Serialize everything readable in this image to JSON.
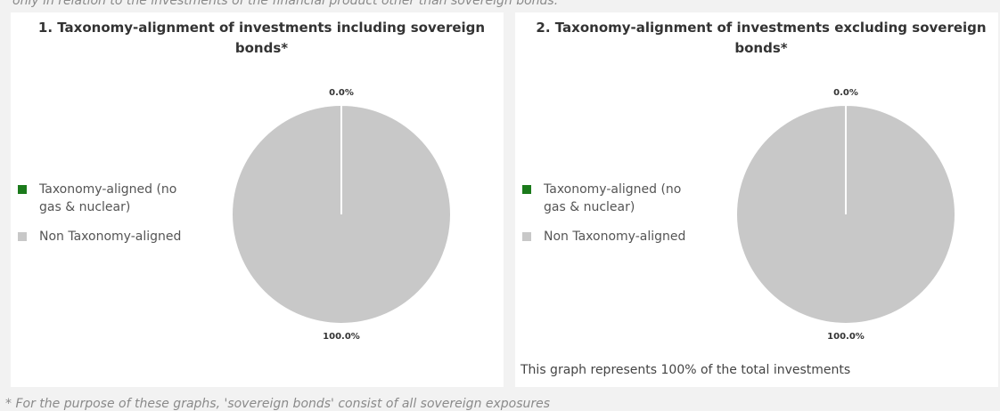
{
  "header_text": "only in relation to the investments of the financial product other than sovereign bonds.",
  "chart_data": [
    {
      "type": "pie",
      "title": "1. Taxonomy-alignment of investments including sovereign bonds*",
      "categories": [
        "Taxonomy-aligned (no gas & nuclear)",
        "Non Taxonomy-aligned"
      ],
      "values": [
        0,
        100
      ],
      "value_labels": [
        "0.0%",
        "100.0%"
      ],
      "colors": [
        "#1b7a1b",
        "#c8c8c8"
      ],
      "legend": "left"
    },
    {
      "type": "pie",
      "title": "2. Taxonomy-alignment of investments excluding sovereign bonds*",
      "categories": [
        "Taxonomy-aligned (no gas & nuclear)",
        "Non Taxonomy-aligned"
      ],
      "values": [
        0,
        100
      ],
      "value_labels": [
        "0.0%",
        "100.0%"
      ],
      "colors": [
        "#1b7a1b",
        "#c8c8c8"
      ],
      "legend": "left",
      "note": "This graph represents 100% of the total investments"
    }
  ],
  "footnote": "* For the purpose of these graphs, 'sovereign bonds' consist of all sovereign exposures"
}
